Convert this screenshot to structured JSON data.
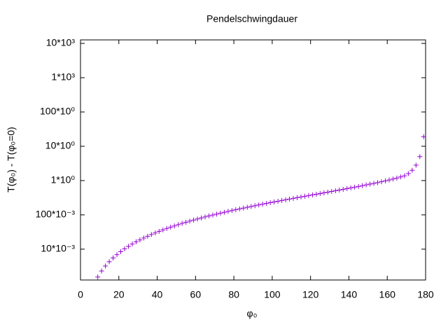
{
  "chart_data": {
    "type": "scatter",
    "title": "Pendelschwingdauer",
    "x_label": "φ₀",
    "y_label": "T(φ₀) - T(φ₀=0)",
    "log_y": true,
    "marker": "+",
    "color": "#9400d3",
    "xlim": [
      0,
      180
    ],
    "xticks": [
      0,
      20,
      40,
      60,
      80,
      100,
      120,
      140,
      160,
      180
    ],
    "ylim": [
      0.00126,
      12650
    ],
    "yticks": [
      {
        "value": 0.01,
        "label": "10*10⁻³"
      },
      {
        "value": 0.1,
        "label": "100*10⁻³"
      },
      {
        "value": 1,
        "label": "1*10⁰"
      },
      {
        "value": 10,
        "label": "10*10⁰"
      },
      {
        "value": 100,
        "label": "100*10⁰"
      },
      {
        "value": 1000,
        "label": "1*10³"
      },
      {
        "value": 10000,
        "label": "10*10³"
      }
    ],
    "x": [
      9,
      11,
      13,
      15,
      17,
      19,
      21,
      23,
      25,
      27,
      29,
      31,
      33,
      35,
      37,
      39,
      41,
      43,
      45,
      47,
      49,
      51,
      53,
      55,
      57,
      59,
      61,
      63,
      65,
      67,
      69,
      71,
      73,
      75,
      77,
      79,
      81,
      83,
      85,
      87,
      89,
      91,
      93,
      95,
      97,
      99,
      101,
      103,
      105,
      107,
      109,
      111,
      113,
      115,
      117,
      119,
      121,
      123,
      125,
      127,
      129,
      131,
      133,
      135,
      137,
      139,
      141,
      143,
      145,
      147,
      149,
      151,
      153,
      155,
      157,
      159,
      161,
      163,
      165,
      167,
      169,
      171,
      173,
      175,
      177,
      179
    ],
    "values": [
      0.00154,
      0.00231,
      0.00323,
      0.0043,
      0.00553,
      0.00692,
      0.00846,
      0.0102,
      0.012,
      0.0141,
      0.0163,
      0.0186,
      0.0211,
      0.0238,
      0.0267,
      0.0298,
      0.033,
      0.0364,
      0.04,
      0.0438,
      0.0477,
      0.0519,
      0.0563,
      0.0608,
      0.0656,
      0.0706,
      0.0758,
      0.0813,
      0.0869,
      0.0928,
      0.099,
      0.1054,
      0.112,
      0.119,
      0.1262,
      0.1337,
      0.1414,
      0.1495,
      0.1579,
      0.1666,
      0.1757,
      0.1851,
      0.1949,
      0.2051,
      0.2156,
      0.2266,
      0.238,
      0.2499,
      0.2623,
      0.2752,
      0.2886,
      0.3025,
      0.3171,
      0.3322,
      0.3481,
      0.3646,
      0.3819,
      0.4,
      0.419,
      0.4389,
      0.4597,
      0.4817,
      0.5048,
      0.5291,
      0.5549,
      0.5821,
      0.611,
      0.6417,
      0.6745,
      0.7096,
      0.7473,
      0.7879,
      0.8251,
      0.8715,
      0.9221,
      0.9776,
      1.039,
      1.108,
      1.185,
      1.275,
      1.379,
      1.6,
      2.0,
      2.8,
      5.0,
      19
    ]
  }
}
